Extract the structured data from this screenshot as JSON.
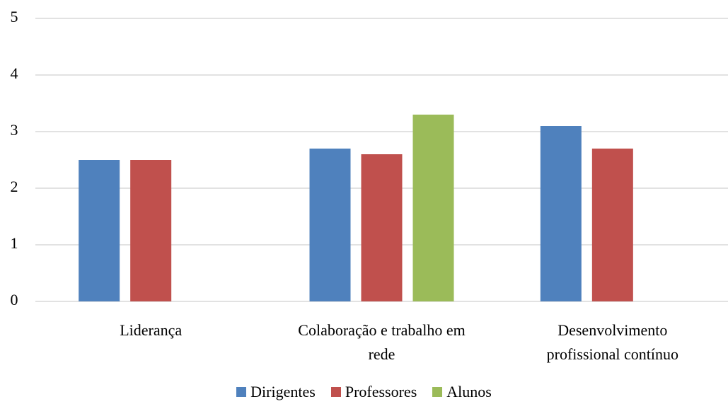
{
  "chart_data": {
    "type": "bar",
    "categories": [
      "Liderança",
      "Colaboração e trabalho em rede",
      "Desenvolvimento profissional contínuo"
    ],
    "series": [
      {
        "name": "Dirigentes",
        "color": "#4f81bd",
        "values": [
          2.5,
          2.7,
          3.1
        ]
      },
      {
        "name": "Professores",
        "color": "#c0504d",
        "values": [
          2.5,
          2.6,
          2.7
        ]
      },
      {
        "name": "Alunos",
        "color": "#9bbb59",
        "values": [
          null,
          3.3,
          null
        ]
      }
    ],
    "ylim": [
      0,
      5
    ],
    "yticks": [
      0,
      1,
      2,
      3,
      4,
      5
    ],
    "grid": true,
    "legend": "bottom"
  }
}
